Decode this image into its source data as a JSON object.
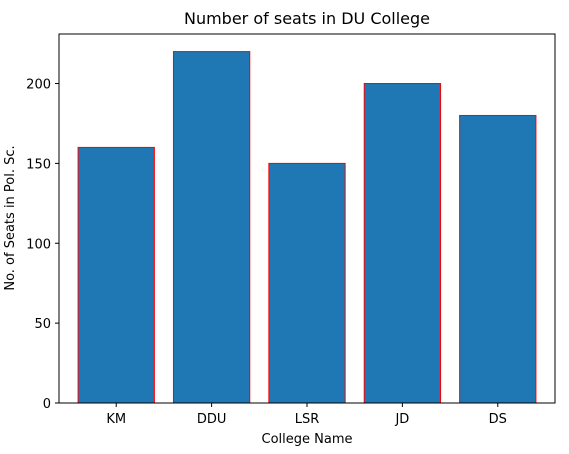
{
  "chart_data": {
    "type": "bar",
    "title": "Number of seats in DU College",
    "xlabel": "College Name",
    "ylabel": "No. of Seats in Pol. Sc.",
    "categories": [
      "KM",
      "DDU",
      "LSR",
      "JD",
      "DS"
    ],
    "values": [
      160,
      220,
      150,
      200,
      180
    ],
    "ylim": [
      0,
      231
    ],
    "yticks": [
      0,
      50,
      100,
      150,
      200
    ],
    "grid": false,
    "bar_color": "#1f77b4",
    "bar_edge_color": "#ff0000"
  }
}
